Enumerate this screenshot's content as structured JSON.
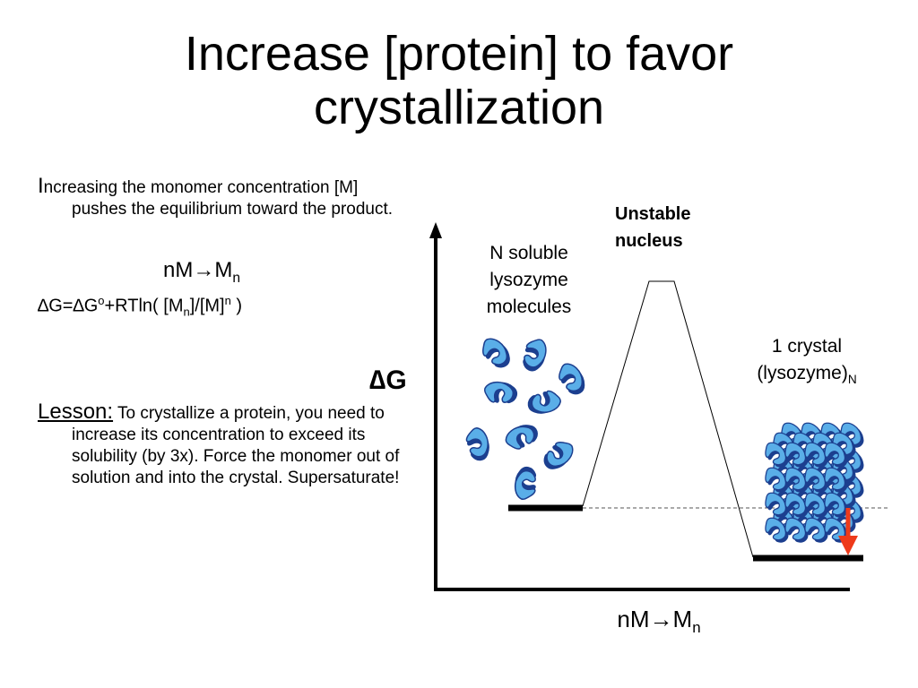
{
  "title": {
    "line1": "Increase [protein] to favor",
    "line2": "crystallization"
  },
  "intro": {
    "first_letter": "I",
    "rest": "ncreasing the monomer concentration [M] pushes the equilibrium toward the product."
  },
  "equation1": {
    "base": "nM→M",
    "sub": "n"
  },
  "equation2": {
    "part1": "∆G=∆G",
    "sup1": "o",
    "part2": "+RTln( [M",
    "sub1": "n",
    "part3": "]/[M]",
    "sup2": "n",
    "part4": " )"
  },
  "lesson": {
    "label": "Lesson:",
    "text": "To crystallize a protein, you need to increase its concentration to exceed its solubility (by 3x).  Force the monomer out of solution and into the crystal. Supersaturate!"
  },
  "diagram": {
    "y_axis_label": "∆G",
    "x_axis_label": {
      "base": "nM→M",
      "sub": "n"
    },
    "soluble_label": "N soluble lysozyme molecules",
    "unstable_label_line1": "Unstable",
    "unstable_label_line2": "nucleus",
    "crystal_label_line1": "1 crystal",
    "crystal_label_line2": "(lysozyme)",
    "crystal_label_sub": "N",
    "colors": {
      "molecule": "#5aaee8",
      "arrow": "#ee3a1a",
      "line": "#000000"
    }
  }
}
